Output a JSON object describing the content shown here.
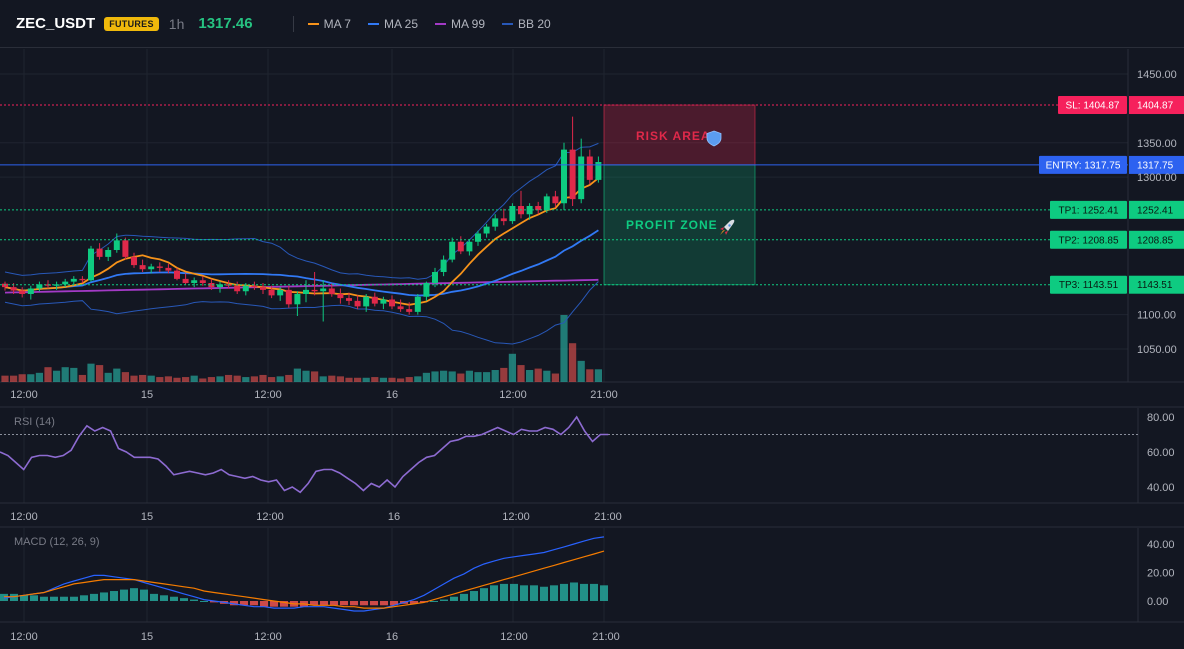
{
  "header": {
    "symbol": "ZEC_USDT",
    "badge": "FUTURES",
    "interval": "1h",
    "price": "1317.46",
    "legend": [
      {
        "label": "MA 7",
        "color": "#f7931a"
      },
      {
        "label": "MA 25",
        "color": "#3179f5"
      },
      {
        "label": "MA 99",
        "color": "#a33ac6"
      },
      {
        "label": "BB 20",
        "color": "#2858b8"
      }
    ]
  },
  "colors": {
    "up": "#26a69a",
    "down": "#ef5350",
    "candle_up": "#0ecb81",
    "candle_down": "#e0294a",
    "sl": "#f6215c",
    "entry": "#2d62f0",
    "tp": "#0ecb81"
  },
  "time_labels": [
    "12:00",
    "15",
    "12:00",
    "16",
    "12:00",
    "21:00"
  ],
  "trade": {
    "risk_label": "RISK AREA",
    "risk_icon": "shield-icon",
    "profit_label": "PROFIT ZONE",
    "profit_icon": "rocket-icon",
    "levels": [
      {
        "id": "sl",
        "tag": "SL: 1404.87",
        "value": "1404.87",
        "price": 1404.87
      },
      {
        "id": "entry",
        "tag": "ENTRY: 1317.75",
        "value": "1317.75",
        "price": 1317.75
      },
      {
        "id": "tp1",
        "tag": "TP1: 1252.41",
        "value": "1252.41",
        "price": 1252.41
      },
      {
        "id": "tp2",
        "tag": "TP2: 1208.85",
        "value": "1208.85",
        "price": 1208.85
      },
      {
        "id": "tp3",
        "tag": "TP3: 1143.51",
        "value": "1143.51",
        "price": 1143.51
      }
    ]
  },
  "chart_data": [
    {
      "type": "candlestick",
      "title": "ZEC_USDT 1h",
      "y_ticks": [
        "1450.00",
        "1350.00",
        "1300.00",
        "1100.00",
        "1050.00"
      ],
      "y_tick_values": [
        1450,
        1350,
        1300,
        1100,
        1050
      ],
      "ylim": [
        1020,
        1475
      ],
      "candles": [
        [
          1145,
          1148,
          1135,
          1140
        ],
        [
          1140,
          1146,
          1130,
          1135
        ],
        [
          1135,
          1140,
          1125,
          1130
        ],
        [
          1130,
          1142,
          1122,
          1138
        ],
        [
          1138,
          1148,
          1134,
          1144
        ],
        [
          1144,
          1150,
          1138,
          1142
        ],
        [
          1142,
          1148,
          1136,
          1144
        ],
        [
          1144,
          1152,
          1140,
          1148
        ],
        [
          1148,
          1156,
          1144,
          1152
        ],
        [
          1152,
          1156,
          1146,
          1150
        ],
        [
          1150,
          1200,
          1148,
          1196
        ],
        [
          1196,
          1204,
          1180,
          1184
        ],
        [
          1184,
          1198,
          1178,
          1194
        ],
        [
          1194,
          1218,
          1190,
          1208
        ],
        [
          1208,
          1212,
          1180,
          1184
        ],
        [
          1184,
          1190,
          1168,
          1172
        ],
        [
          1172,
          1180,
          1162,
          1166
        ],
        [
          1166,
          1174,
          1160,
          1170
        ],
        [
          1170,
          1176,
          1162,
          1168
        ],
        [
          1168,
          1174,
          1160,
          1164
        ],
        [
          1164,
          1168,
          1150,
          1152
        ],
        [
          1152,
          1160,
          1144,
          1146
        ],
        [
          1146,
          1154,
          1140,
          1150
        ],
        [
          1150,
          1156,
          1142,
          1146
        ],
        [
          1146,
          1152,
          1136,
          1140
        ],
        [
          1140,
          1148,
          1132,
          1144
        ],
        [
          1144,
          1150,
          1138,
          1142
        ],
        [
          1142,
          1148,
          1130,
          1134
        ],
        [
          1134,
          1146,
          1128,
          1142
        ],
        [
          1142,
          1148,
          1136,
          1140
        ],
        [
          1140,
          1146,
          1130,
          1136
        ],
        [
          1136,
          1142,
          1124,
          1128
        ],
        [
          1128,
          1140,
          1120,
          1136
        ],
        [
          1136,
          1142,
          1110,
          1115
        ],
        [
          1115,
          1134,
          1098,
          1130
        ],
        [
          1130,
          1150,
          1118,
          1136
        ],
        [
          1136,
          1162,
          1128,
          1134
        ],
        [
          1134,
          1150,
          1090,
          1138
        ],
        [
          1138,
          1145,
          1126,
          1130
        ],
        [
          1130,
          1138,
          1116,
          1124
        ],
        [
          1124,
          1132,
          1114,
          1120
        ],
        [
          1120,
          1128,
          1108,
          1112
        ],
        [
          1112,
          1130,
          1104,
          1126
        ],
        [
          1126,
          1132,
          1112,
          1116
        ],
        [
          1116,
          1126,
          1108,
          1122
        ],
        [
          1122,
          1128,
          1108,
          1112
        ],
        [
          1112,
          1122,
          1104,
          1108
        ],
        [
          1108,
          1118,
          1100,
          1104
        ],
        [
          1104,
          1130,
          1100,
          1126
        ],
        [
          1126,
          1148,
          1120,
          1146
        ],
        [
          1146,
          1168,
          1140,
          1162
        ],
        [
          1162,
          1186,
          1156,
          1180
        ],
        [
          1180,
          1212,
          1176,
          1206
        ],
        [
          1206,
          1214,
          1188,
          1192
        ],
        [
          1192,
          1210,
          1186,
          1206
        ],
        [
          1206,
          1222,
          1200,
          1218
        ],
        [
          1218,
          1232,
          1212,
          1228
        ],
        [
          1228,
          1246,
          1222,
          1240
        ],
        [
          1240,
          1254,
          1230,
          1236
        ],
        [
          1236,
          1262,
          1232,
          1258
        ],
        [
          1258,
          1280,
          1240,
          1246
        ],
        [
          1246,
          1262,
          1238,
          1258
        ],
        [
          1258,
          1264,
          1246,
          1252
        ],
        [
          1252,
          1276,
          1248,
          1272
        ],
        [
          1272,
          1280,
          1256,
          1262
        ],
        [
          1262,
          1350,
          1252,
          1340
        ],
        [
          1340,
          1388,
          1258,
          1268
        ],
        [
          1268,
          1356,
          1262,
          1330
        ],
        [
          1330,
          1340,
          1290,
          1296
        ],
        [
          1296,
          1330,
          1292,
          1322
        ]
      ],
      "volumes": [
        9,
        9,
        11,
        11,
        13,
        21,
        16,
        21,
        20,
        10,
        26,
        24,
        13,
        19,
        14,
        9,
        10,
        9,
        7,
        8,
        6,
        7,
        9,
        5,
        7,
        8,
        10,
        9,
        7,
        8,
        10,
        7,
        8,
        10,
        19,
        16,
        15,
        8,
        9,
        8,
        6,
        6,
        6,
        7,
        6,
        6,
        5,
        7,
        8,
        13,
        15,
        16,
        15,
        12,
        16,
        14,
        14,
        17,
        20,
        40,
        24,
        17,
        19,
        16,
        12,
        95,
        55,
        30,
        18,
        18
      ]
    },
    {
      "type": "line",
      "title": "RSI (14)",
      "y_ticks": [
        "80.00",
        "60.00",
        "40.00"
      ],
      "y_tick_values": [
        80,
        60,
        40
      ],
      "ylim": [
        32,
        86
      ],
      "ref_line": 70,
      "values": [
        60,
        58,
        54,
        50,
        57,
        58,
        58,
        57,
        58,
        61,
        69,
        75,
        72,
        74,
        72,
        62,
        60,
        57,
        57,
        57,
        56,
        52,
        47,
        48,
        49,
        48,
        47,
        48,
        50,
        47,
        46,
        45,
        46,
        44,
        43,
        44,
        38,
        40,
        37,
        42,
        49,
        50,
        50,
        48,
        45,
        42,
        38,
        42,
        40,
        44,
        40,
        46,
        50,
        54,
        57,
        58,
        62,
        66,
        67,
        69,
        69,
        70,
        72,
        74,
        72,
        70,
        73,
        72,
        72,
        74,
        73,
        70,
        74,
        80,
        72,
        66,
        70,
        70
      ],
      "series": [
        {
          "name": "",
          "color": "#8d6bd1"
        }
      ]
    },
    {
      "type": "bar",
      "title": "MACD (12, 26, 9)",
      "y_ticks": [
        "40.00",
        "20.00",
        "0.00"
      ],
      "y_tick_values": [
        40,
        20,
        0
      ],
      "ylim": [
        -12,
        50
      ],
      "macd": [
        2,
        3,
        4,
        5,
        6,
        9,
        12,
        14,
        16,
        18,
        18,
        17,
        16,
        15,
        13,
        11,
        9,
        7,
        5,
        3,
        1,
        0,
        -1,
        -2,
        -3,
        -4,
        -4,
        -5,
        -5,
        -5,
        -4,
        -4,
        -4,
        -5,
        -6,
        -7,
        -7,
        -6,
        -5,
        -3,
        -1,
        1,
        4,
        8,
        12,
        16,
        19,
        23,
        26,
        28,
        30,
        31,
        32,
        33,
        34,
        36,
        38,
        40,
        42,
        44,
        45
      ],
      "signal": [
        3,
        3,
        4,
        5,
        6,
        8,
        10,
        12,
        13,
        14,
        15,
        15,
        15,
        15,
        14,
        13,
        12,
        11,
        10,
        9,
        7,
        6,
        5,
        4,
        3,
        2,
        1,
        0,
        -1,
        -2,
        -2,
        -3,
        -3,
        -3,
        -4,
        -4,
        -5,
        -5,
        -5,
        -4,
        -3,
        -2,
        -1,
        1,
        3,
        5,
        7,
        9,
        11,
        13,
        15,
        17,
        19,
        21,
        23,
        25,
        27,
        29,
        31,
        33,
        35
      ],
      "histogram": [
        5,
        5,
        4,
        4,
        3,
        3,
        3,
        3,
        4,
        5,
        6,
        7,
        8,
        9,
        8,
        5,
        4,
        3,
        2,
        1,
        0,
        -1,
        -2,
        -3,
        -3,
        -3,
        -4,
        -4,
        -4,
        -4,
        -4,
        -3,
        -3,
        -3,
        -3,
        -3,
        -3,
        -3,
        -3,
        -3,
        -2,
        -2,
        -1,
        0,
        1,
        3,
        5,
        7,
        9,
        11,
        12,
        12,
        11,
        11,
        10,
        11,
        12,
        13,
        12,
        12,
        11
      ],
      "series": [
        {
          "name": "",
          "color": "#2962ff"
        },
        {
          "name": "",
          "color": "#f57c00"
        }
      ]
    }
  ]
}
